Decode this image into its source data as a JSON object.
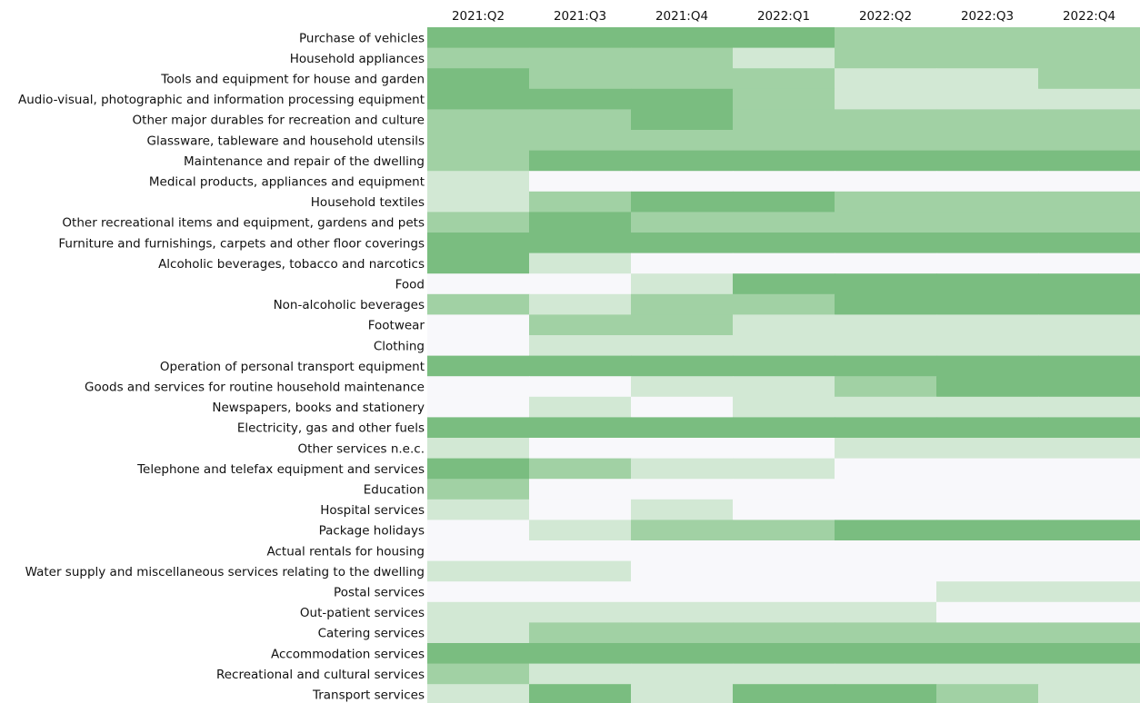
{
  "chart_data": {
    "type": "heatmap",
    "columns": [
      "2021:Q2",
      "2021:Q3",
      "2021:Q4",
      "2022:Q1",
      "2022:Q2",
      "2022:Q3",
      "2022:Q4"
    ],
    "rows": [
      "Purchase of vehicles",
      "Household appliances",
      "Tools and equipment for house and garden",
      "Audio-visual, photographic and information processing equipment",
      "Other major durables for recreation and culture",
      "Glassware, tableware and household utensils",
      "Maintenance and repair of the dwelling",
      "Medical products, appliances and equipment",
      "Household textiles",
      "Other recreational items and equipment, gardens and pets",
      "Furniture and furnishings, carpets and other floor coverings",
      "Alcoholic beverages, tobacco and narcotics",
      "Food",
      "Non-alcoholic beverages",
      "Footwear",
      "Clothing",
      "Operation of personal transport equipment",
      "Goods and services for routine household maintenance",
      "Newspapers, books and stationery",
      "Electricity, gas and other fuels",
      "Other services n.e.c.",
      "Telephone and telefax equipment and services",
      "Education",
      "Hospital services",
      "Package holidays",
      "Actual rentals for housing",
      "Water supply and miscellaneous services relating to the dwelling",
      "Postal services",
      "Out-patient services",
      "Catering services",
      "Accommodation services",
      "Recreational and cultural services",
      "Transport services"
    ],
    "values": [
      [
        3,
        3,
        3,
        3,
        2,
        2,
        2
      ],
      [
        2,
        2,
        2,
        1,
        2,
        2,
        2
      ],
      [
        3,
        2,
        2,
        2,
        1,
        1,
        2
      ],
      [
        3,
        3,
        3,
        2,
        1,
        1,
        1
      ],
      [
        2,
        2,
        3,
        2,
        2,
        2,
        2
      ],
      [
        2,
        2,
        2,
        2,
        2,
        2,
        2
      ],
      [
        2,
        3,
        3,
        3,
        3,
        3,
        3
      ],
      [
        1,
        0,
        0,
        0,
        0,
        0,
        0
      ],
      [
        1,
        2,
        3,
        3,
        2,
        2,
        2
      ],
      [
        2,
        3,
        2,
        2,
        2,
        2,
        2
      ],
      [
        3,
        3,
        3,
        3,
        3,
        3,
        3
      ],
      [
        3,
        1,
        0,
        0,
        0,
        0,
        0
      ],
      [
        0,
        0,
        1,
        3,
        3,
        3,
        3
      ],
      [
        2,
        1,
        2,
        2,
        3,
        3,
        3
      ],
      [
        0,
        2,
        2,
        1,
        1,
        1,
        1
      ],
      [
        0,
        1,
        1,
        1,
        1,
        1,
        1
      ],
      [
        3,
        3,
        3,
        3,
        3,
        3,
        3
      ],
      [
        0,
        0,
        1,
        1,
        2,
        3,
        3
      ],
      [
        0,
        1,
        0,
        1,
        1,
        1,
        1
      ],
      [
        3,
        3,
        3,
        3,
        3,
        3,
        3
      ],
      [
        1,
        0,
        0,
        0,
        1,
        1,
        1
      ],
      [
        3,
        2,
        1,
        1,
        0,
        0,
        0
      ],
      [
        2,
        0,
        0,
        0,
        0,
        0,
        0
      ],
      [
        1,
        0,
        1,
        0,
        0,
        0,
        0
      ],
      [
        0,
        1,
        2,
        2,
        3,
        3,
        3
      ],
      [
        0,
        0,
        0,
        0,
        0,
        0,
        0
      ],
      [
        1,
        1,
        0,
        0,
        0,
        0,
        0
      ],
      [
        0,
        0,
        0,
        0,
        0,
        1,
        1
      ],
      [
        1,
        1,
        1,
        1,
        1,
        0,
        0
      ],
      [
        1,
        2,
        2,
        2,
        2,
        2,
        2
      ],
      [
        3,
        3,
        3,
        3,
        3,
        3,
        3
      ],
      [
        2,
        1,
        1,
        1,
        1,
        1,
        1
      ],
      [
        1,
        3,
        1,
        3,
        3,
        2,
        1
      ]
    ],
    "colors": [
      "#f8f8fb",
      "#d2e8d4",
      "#a1d1a4",
      "#7abd80"
    ]
  }
}
